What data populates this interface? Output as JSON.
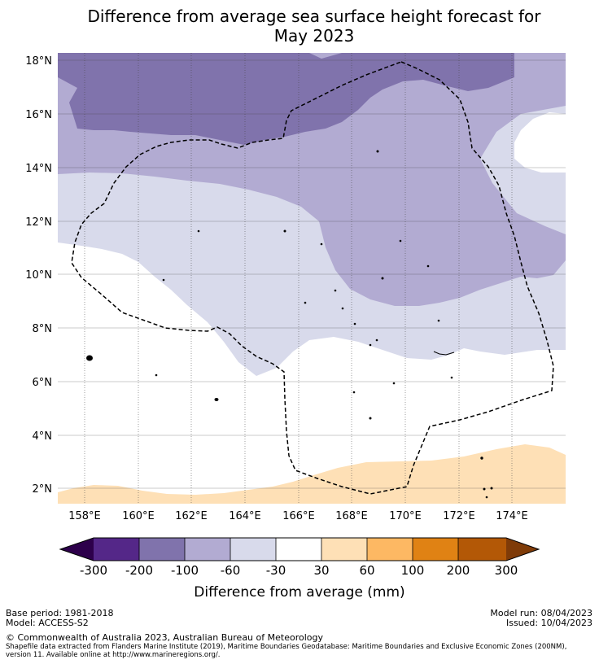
{
  "title": {
    "line1": "Difference from average sea surface height forecast for",
    "line2": "May 2023"
  },
  "map": {
    "lat_labels": [
      "18°N",
      "16°N",
      "14°N",
      "12°N",
      "10°N",
      "8°N",
      "6°N",
      "4°N",
      "2°N"
    ],
    "lon_labels": [
      "158°E",
      "160°E",
      "162°E",
      "164°E",
      "166°E",
      "168°E",
      "170°E",
      "172°E",
      "174°E"
    ],
    "lat_range": [
      1.4,
      18.3
    ],
    "lon_range": [
      157.0,
      176.0
    ],
    "boundary": "Maritime boundary (EEZ) shown as dashed line",
    "colors": {
      "-200_-100": "#8073ac",
      "-100_-60": "#b2abd2",
      "-60_-30": "#d8daeb",
      "-30_30": "#ffffff",
      "30_60": "#fee0b6"
    }
  },
  "colorbar": {
    "title": "Difference from average (mm)",
    "tick_labels": [
      "-300",
      "-200",
      "-100",
      "-60",
      "-30",
      "30",
      "60",
      "100",
      "200",
      "300"
    ],
    "colors": [
      "#2d004b",
      "#542788",
      "#8073ac",
      "#b2abd2",
      "#d8daeb",
      "#ffffff",
      "#fee0b6",
      "#fdb863",
      "#e08214",
      "#b35806",
      "#7f3b08"
    ]
  },
  "footer": {
    "base_period": "Base period: 1981-2018",
    "model": "Model: ACCESS-S2",
    "model_run": "Model run: 08/04/2023",
    "issued": "Issued: 10/04/2023",
    "copyright": "© Commonwealth of Australia 2023, Australian Bureau of Meteorology",
    "shapefile_note": "Shapefile data extracted from Flanders Marine Institute (2019), Maritime Boundaries Geodatabase: Maritime Boundaries and Exclusive Economic Zones (200NM), version 11. Available online at http://www.marineregions.org/."
  }
}
